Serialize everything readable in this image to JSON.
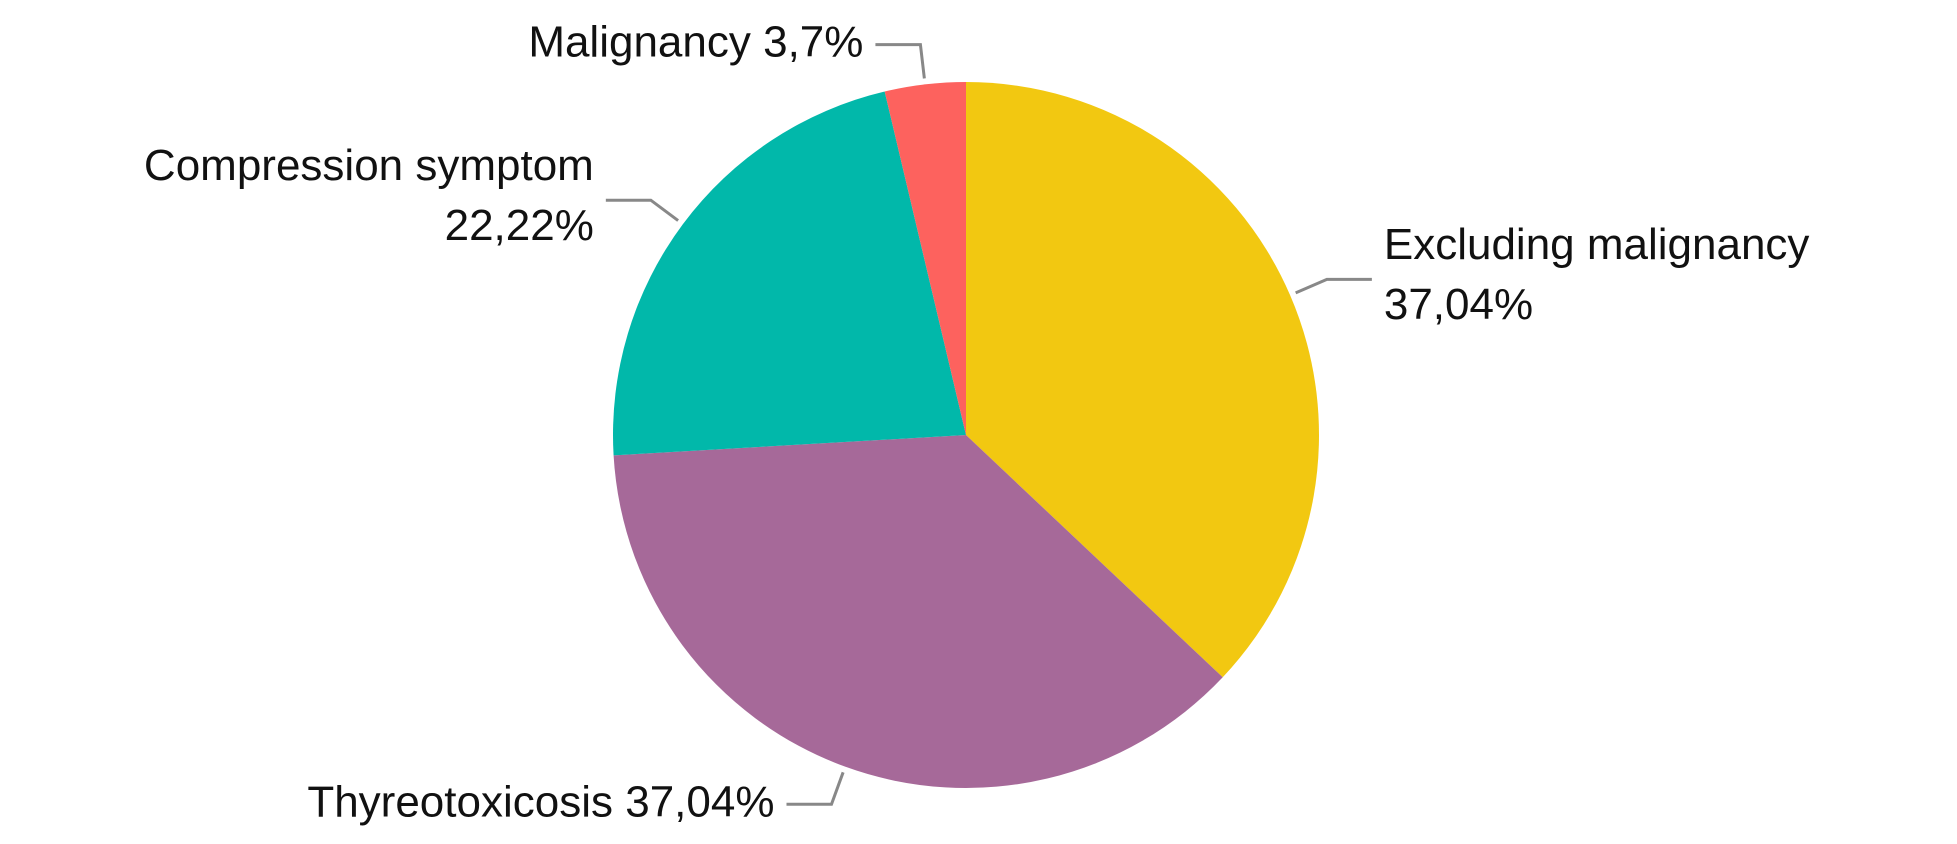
{
  "chart_data": {
    "type": "pie",
    "categories": [
      "Excluding malignancy",
      "Thyreotoxicosis",
      "Compression symptom",
      "Malignancy"
    ],
    "values": [
      37.04,
      37.04,
      22.22,
      3.7
    ],
    "value_labels": [
      "37,04%",
      "37,04%",
      "22,22%",
      "3,7%"
    ],
    "colors": [
      "#f2c811",
      "#a66999",
      "#01b8aa",
      "#fd625e"
    ],
    "start_angle": 90,
    "direction": "clockwise"
  }
}
